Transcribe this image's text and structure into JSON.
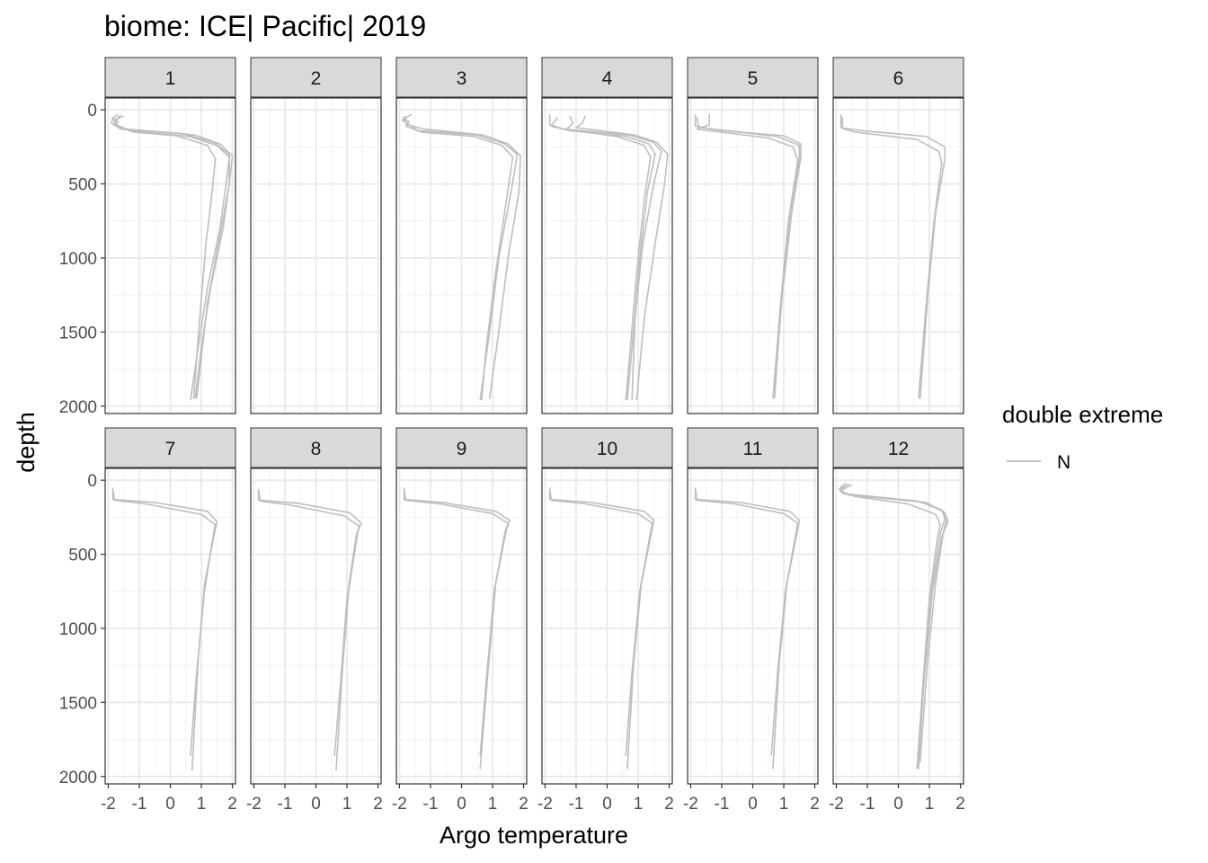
{
  "chart_data": {
    "type": "line",
    "title": "biome: ICE| Pacific| 2019",
    "xlabel": "Argo temperature",
    "ylabel": "depth",
    "xlim": [
      -2.1,
      2.1
    ],
    "ylim": [
      2050,
      -80
    ],
    "y_reversed": true,
    "xticks": [
      -2,
      -1,
      0,
      1,
      2
    ],
    "xtick_labels": [
      "-2",
      "-1",
      "0",
      "1",
      "2"
    ],
    "yticks": [
      0,
      500,
      1000,
      1500,
      2000
    ],
    "ytick_labels": [
      "0",
      "500",
      "1000",
      "1500",
      "2000"
    ],
    "grid": true,
    "legend": {
      "title": "double extreme",
      "placement": "right",
      "entries": [
        {
          "label": "N",
          "color": "#bebebe"
        }
      ]
    },
    "facet_labels": [
      "1",
      "2",
      "3",
      "4",
      "5",
      "6",
      "7",
      "8",
      "9",
      "10",
      "11",
      "12"
    ],
    "facets": [
      {
        "label": "1",
        "series": [
          {
            "name": "N",
            "temperature": [
              -1.7,
              -1.85,
              -1.9,
              -1.6,
              0.4,
              1.4,
              1.9,
              1.9,
              1.7,
              1.3,
              1.0,
              0.8
            ],
            "depth": [
              30,
              60,
              90,
              130,
              160,
              220,
              300,
              500,
              800,
              1200,
              1600,
              1950
            ]
          },
          {
            "name": "N",
            "temperature": [
              -1.5,
              -1.8,
              -1.8,
              -1.3,
              0.6,
              1.5,
              1.9,
              1.8,
              1.6,
              1.2,
              0.9,
              0.65
            ],
            "depth": [
              40,
              70,
              100,
              140,
              180,
              240,
              320,
              500,
              800,
              1200,
              1600,
              1960
            ]
          },
          {
            "name": "N",
            "temperature": [
              -1.9,
              -1.7,
              -1.75,
              -1.2,
              0.2,
              1.2,
              1.45,
              1.35,
              1.15,
              0.95,
              0.75
            ],
            "depth": [
              50,
              80,
              110,
              150,
              175,
              240,
              330,
              550,
              900,
              1400,
              1950
            ]
          },
          {
            "name": "N",
            "temperature": [
              -1.6,
              -1.8,
              -1.7,
              -1.4,
              0.8,
              1.6,
              2.0,
              1.9,
              1.6,
              1.2,
              0.85
            ],
            "depth": [
              35,
              75,
              105,
              130,
              170,
              230,
              310,
              500,
              850,
              1300,
              1950
            ]
          }
        ]
      },
      {
        "label": "2",
        "series": []
      },
      {
        "label": "3",
        "series": [
          {
            "name": "N",
            "temperature": [
              -1.8,
              -1.9,
              -1.7,
              -1.4,
              0.5,
              1.4,
              1.8,
              1.6,
              1.2,
              0.9,
              0.6
            ],
            "depth": [
              40,
              70,
              100,
              140,
              170,
              230,
              300,
              550,
              1000,
              1500,
              1960
            ]
          },
          {
            "name": "N",
            "temperature": [
              -1.6,
              -1.85,
              -1.75,
              -1.2,
              0.7,
              1.5,
              1.9,
              1.85,
              1.5,
              1.2,
              0.9
            ],
            "depth": [
              30,
              60,
              100,
              130,
              170,
              230,
              310,
              550,
              1000,
              1500,
              1950
            ]
          },
          {
            "name": "N",
            "temperature": [
              -1.9,
              -1.7,
              -1.8,
              -1.3,
              0.4,
              1.3,
              1.65,
              1.45,
              1.1,
              0.8,
              0.65
            ],
            "depth": [
              50,
              80,
              110,
              150,
              180,
              240,
              320,
              600,
              1100,
              1600,
              1960
            ]
          }
        ]
      },
      {
        "label": "4",
        "series": [
          {
            "name": "N",
            "temperature": [
              -1.85,
              -1.85,
              -1.4,
              0.7,
              1.5,
              1.75,
              1.5,
              1.15,
              0.9,
              0.8
            ],
            "depth": [
              30,
              100,
              130,
              170,
              220,
              280,
              500,
              900,
              1400,
              1960
            ]
          },
          {
            "name": "N",
            "temperature": [
              -1.6,
              -1.8,
              -1.2,
              0.6,
              1.35,
              1.55,
              1.3,
              1.05,
              0.85,
              0.65
            ],
            "depth": [
              50,
              110,
              140,
              180,
              230,
              300,
              550,
              1000,
              1500,
              1960
            ]
          },
          {
            "name": "N",
            "temperature": [
              -1.2,
              -1.1,
              -1.3,
              0.3,
              1.2,
              1.4,
              1.2,
              0.95,
              0.75,
              0.6
            ],
            "depth": [
              40,
              90,
              130,
              180,
              240,
              320,
              600,
              1100,
              1600,
              1960
            ]
          },
          {
            "name": "N",
            "temperature": [
              -0.7,
              -0.8,
              -1.0,
              0.9,
              1.6,
              1.95,
              1.85,
              1.55,
              1.2,
              0.95
            ],
            "depth": [
              40,
              90,
              120,
              170,
              220,
              300,
              500,
              900,
              1400,
              1960
            ]
          }
        ]
      },
      {
        "label": "5",
        "series": [
          {
            "name": "N",
            "temperature": [
              -1.85,
              -1.85,
              -1.3,
              0.8,
              1.5,
              1.5,
              1.2,
              0.95,
              0.7
            ],
            "depth": [
              30,
              110,
              130,
              180,
              240,
              330,
              700,
              1200,
              1950
            ]
          },
          {
            "name": "N",
            "temperature": [
              -1.4,
              -1.4,
              -1.8,
              0.5,
              1.3,
              1.45,
              1.15,
              0.9,
              0.65
            ],
            "depth": [
              30,
              100,
              130,
              190,
              250,
              340,
              750,
              1300,
              1950
            ]
          },
          {
            "name": "N",
            "temperature": [
              -1.8,
              -1.75,
              -1.0,
              1.0,
              1.55,
              1.55,
              1.25,
              0.95,
              0.7
            ],
            "depth": [
              50,
              115,
              140,
              175,
              230,
              320,
              700,
              1250,
              1900
            ]
          }
        ]
      },
      {
        "label": "6",
        "series": [
          {
            "name": "N",
            "temperature": [
              -1.85,
              -1.85,
              -1.2,
              0.9,
              1.5,
              1.5,
              1.2,
              0.95,
              0.7
            ],
            "depth": [
              30,
              120,
              140,
              180,
              250,
              330,
              700,
              1250,
              1950
            ]
          },
          {
            "name": "N",
            "temperature": [
              -1.8,
              -1.8,
              -1.4,
              0.6,
              1.3,
              1.4,
              1.15,
              0.9,
              0.65
            ],
            "depth": [
              50,
              125,
              150,
              200,
              280,
              360,
              750,
              1300,
              1950
            ]
          }
        ]
      },
      {
        "label": "7",
        "series": [
          {
            "name": "N",
            "temperature": [
              -1.85,
              -1.85,
              -0.5,
              1.2,
              1.5,
              1.45,
              1.1,
              0.9,
              0.7
            ],
            "depth": [
              50,
              130,
              150,
              210,
              280,
              330,
              700,
              1200,
              1960
            ]
          },
          {
            "name": "N",
            "temperature": [
              -1.85,
              -1.8,
              -0.8,
              1.0,
              1.45,
              1.4,
              1.1,
              0.85,
              0.65
            ],
            "depth": [
              60,
              135,
              160,
              230,
              300,
              350,
              750,
              1300,
              1860
            ]
          }
        ]
      },
      {
        "label": "8",
        "series": [
          {
            "name": "N",
            "temperature": [
              -1.85,
              -1.85,
              -0.6,
              1.1,
              1.45,
              1.35,
              1.05,
              0.85,
              0.65
            ],
            "depth": [
              60,
              135,
              155,
              220,
              290,
              350,
              750,
              1300,
              1960
            ]
          },
          {
            "name": "N",
            "temperature": [
              -1.85,
              -1.8,
              -0.9,
              0.9,
              1.4,
              1.3,
              1.0,
              0.8,
              0.6
            ],
            "depth": [
              60,
              140,
              165,
              240,
              310,
              370,
              800,
              1350,
              1860
            ]
          }
        ]
      },
      {
        "label": "9",
        "series": [
          {
            "name": "N",
            "temperature": [
              -1.85,
              -1.85,
              -0.6,
              1.1,
              1.55,
              1.45,
              1.1,
              0.85,
              0.6
            ],
            "depth": [
              50,
              130,
              150,
              210,
              270,
              330,
              700,
              1300,
              1950
            ]
          },
          {
            "name": "N",
            "temperature": [
              -1.85,
              -1.8,
              -0.7,
              1.0,
              1.5,
              1.4,
              1.05,
              0.8,
              0.6
            ],
            "depth": [
              60,
              135,
              160,
              225,
              290,
              350,
              750,
              1350,
              1860
            ]
          }
        ]
      },
      {
        "label": "10",
        "series": [
          {
            "name": "N",
            "temperature": [
              -1.85,
              -1.85,
              -0.5,
              1.2,
              1.5,
              1.45,
              1.1,
              0.85,
              0.65
            ],
            "depth": [
              50,
              130,
              150,
              210,
              270,
              330,
              700,
              1250,
              1950
            ]
          },
          {
            "name": "N",
            "temperature": [
              -1.85,
              -1.8,
              -0.7,
              1.0,
              1.45,
              1.4,
              1.05,
              0.8,
              0.6
            ],
            "depth": [
              60,
              135,
              160,
              225,
              290,
              350,
              750,
              1300,
              1860
            ]
          }
        ]
      },
      {
        "label": "11",
        "series": [
          {
            "name": "N",
            "temperature": [
              -1.85,
              -1.85,
              -0.4,
              1.2,
              1.5,
              1.45,
              1.1,
              0.85,
              0.65
            ],
            "depth": [
              50,
              130,
              150,
              210,
              270,
              330,
              700,
              1250,
              1950
            ]
          },
          {
            "name": "N",
            "temperature": [
              -1.85,
              -1.8,
              -0.6,
              1.0,
              1.45,
              1.4,
              1.05,
              0.8,
              0.6
            ],
            "depth": [
              60,
              135,
              160,
              225,
              290,
              350,
              750,
              1300,
              1860
            ]
          }
        ]
      },
      {
        "label": "12",
        "series": [
          {
            "name": "N",
            "temperature": [
              -1.7,
              -1.9,
              -1.8,
              0.6,
              1.4,
              1.5,
              1.35,
              1.1,
              0.85,
              0.65
            ],
            "depth": [
              20,
              60,
              90,
              140,
              200,
              260,
              360,
              700,
              1250,
              1950
            ]
          },
          {
            "name": "N",
            "temperature": [
              -1.5,
              -1.85,
              -1.6,
              0.9,
              1.5,
              1.6,
              1.4,
              1.1,
              0.85,
              0.65
            ],
            "depth": [
              30,
              70,
              100,
              150,
              220,
              280,
              380,
              750,
              1300,
              1860
            ]
          },
          {
            "name": "N",
            "temperature": [
              -1.85,
              -1.8,
              -1.4,
              0.3,
              1.2,
              1.35,
              1.25,
              1.0,
              0.8,
              0.6
            ],
            "depth": [
              40,
              80,
              110,
              160,
              230,
              300,
              400,
              800,
              1350,
              1950
            ]
          },
          {
            "name": "N",
            "temperature": [
              -1.6,
              -1.9,
              -1.7,
              0.7,
              1.45,
              1.55,
              1.45,
              1.2,
              0.95,
              0.7
            ],
            "depth": [
              25,
              65,
              95,
              145,
              210,
              270,
              350,
              700,
              1200,
              1900
            ]
          }
        ]
      }
    ]
  }
}
